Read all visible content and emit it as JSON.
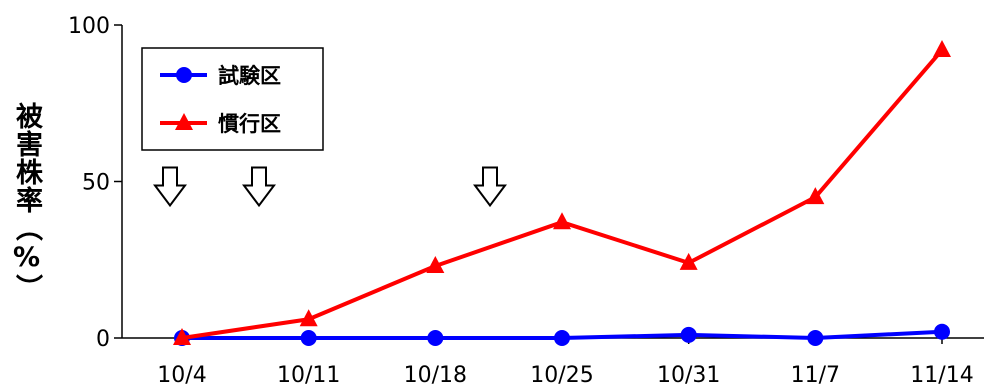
{
  "chart_data": {
    "type": "line",
    "title": "",
    "xlabel": "",
    "ylabel": "被害株率（%）",
    "categories": [
      "10/4",
      "10/11",
      "10/18",
      "10/25",
      "10/31",
      "11/7",
      "11/14"
    ],
    "ylim": [
      0,
      100
    ],
    "yticks": [
      0,
      50,
      100
    ],
    "grid": false,
    "legend_position": "top-left",
    "series": [
      {
        "name": "試験区",
        "color": "#0000ff",
        "marker": "circle",
        "values": [
          0,
          0,
          0,
          0,
          1,
          0,
          2
        ]
      },
      {
        "name": "慣行区",
        "color": "#ff0000",
        "marker": "triangle",
        "values": [
          0,
          6,
          23,
          37,
          24,
          45,
          92
        ]
      }
    ],
    "annotations": [
      {
        "type": "down-arrow",
        "x": "10/4",
        "y": 50
      },
      {
        "type": "down-arrow",
        "x": "10/11",
        "y": 50
      },
      {
        "type": "down-arrow",
        "x": "10/25",
        "y": 50
      }
    ]
  }
}
